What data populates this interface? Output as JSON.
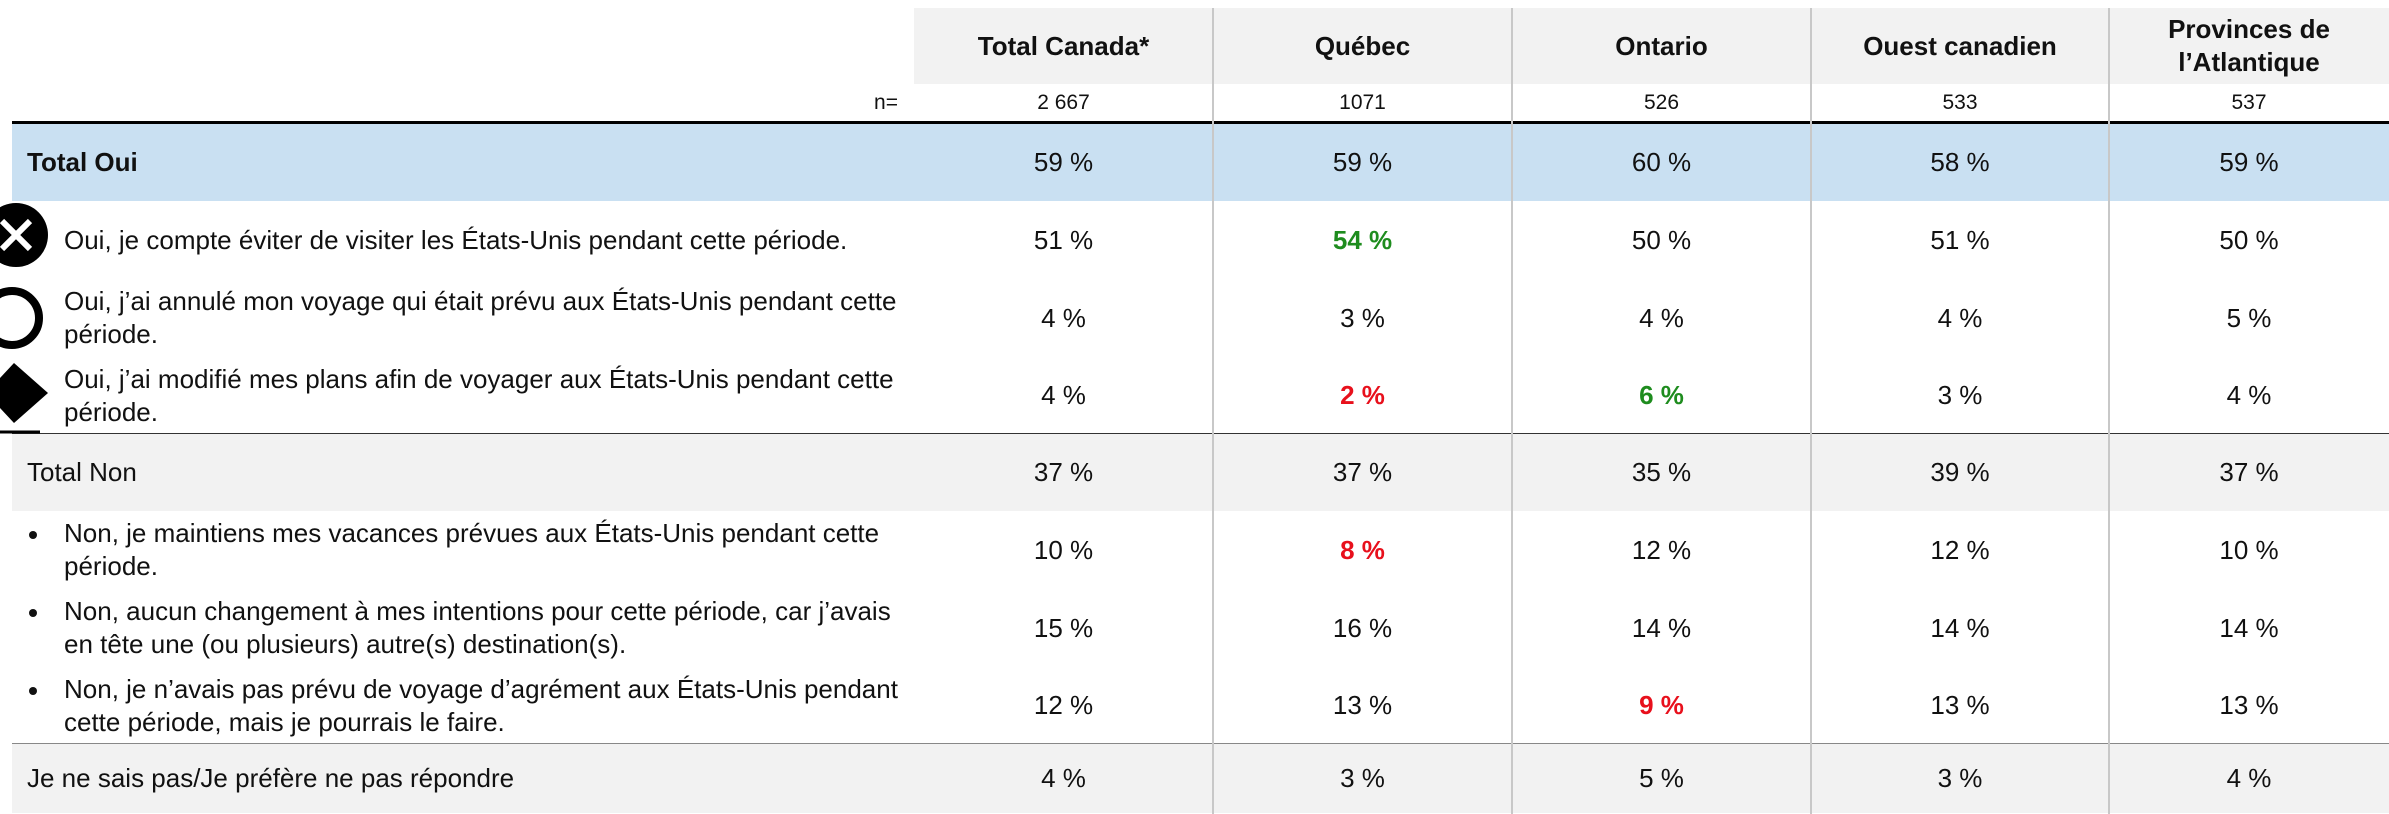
{
  "table": {
    "columns": [
      "Total Canada*",
      "Québec",
      "Ontario",
      "Ouest canadien",
      "Provinces de l’Atlantique"
    ],
    "n_label": "n=",
    "n": [
      "2 667",
      "1071",
      "526",
      "533",
      "537"
    ],
    "rows": [
      {
        "label": "Total Oui",
        "marker": "total-blue",
        "cells": [
          "59 %",
          "59 %",
          "60 %",
          "58 %",
          "59 %"
        ]
      },
      {
        "label": "Oui, je compte éviter de visiter les États-Unis pendant cette période.",
        "marker": "icon-x",
        "cells": [
          "51 %",
          {
            "text": "54 %",
            "color": "#1e8c1e"
          },
          "50 %",
          "51 %",
          "50 %"
        ]
      },
      {
        "label": "Oui, j’ai annulé mon voyage qui était prévu aux États-Unis pendant cette période.",
        "marker": "icon-o",
        "cells": [
          "4 %",
          "3 %",
          "4 %",
          "4 %",
          "5 %"
        ]
      },
      {
        "label": "Oui, j’ai modifié mes plans afin de voyager aux États-Unis pendant cette période.",
        "marker": "icon-diamond",
        "cells": [
          "4 %",
          {
            "text": "2 %",
            "color": "#e8101c"
          },
          {
            "text": "6 %",
            "color": "#1e8c1e"
          },
          "3 %",
          "4 %"
        ]
      },
      {
        "label": "Total Non",
        "marker": "total-gray",
        "cells": [
          "37 %",
          "37 %",
          "35 %",
          "39 %",
          "37 %"
        ]
      },
      {
        "label": "Non, je maintiens mes vacances prévues aux États-Unis pendant cette période.",
        "marker": "bullet",
        "cells": [
          "10 %",
          {
            "text": "8 %",
            "color": "#e8101c"
          },
          "12 %",
          "12 %",
          "10 %"
        ]
      },
      {
        "label": "Non, aucun changement à mes intentions pour cette période, car j’avais en tête une (ou plusieurs) autre(s) destination(s).",
        "marker": "bullet",
        "cells": [
          "15 %",
          "16 %",
          "14 %",
          "14 %",
          "14 %"
        ]
      },
      {
        "label": "Non, je n’avais pas prévu de voyage d’agrément aux États-Unis pendant cette période, mais je pourrais le faire.",
        "marker": "bullet",
        "cells": [
          "12 %",
          "13 %",
          {
            "text": "9 %",
            "color": "#e8101c"
          },
          "13 %",
          "13 %"
        ]
      },
      {
        "label": "Je ne sais pas/Je préfère ne pas répondre",
        "marker": "total-gray",
        "cells": [
          "4 %",
          "3 %",
          "5 %",
          "3 %",
          "4 %"
        ]
      }
    ]
  }
}
